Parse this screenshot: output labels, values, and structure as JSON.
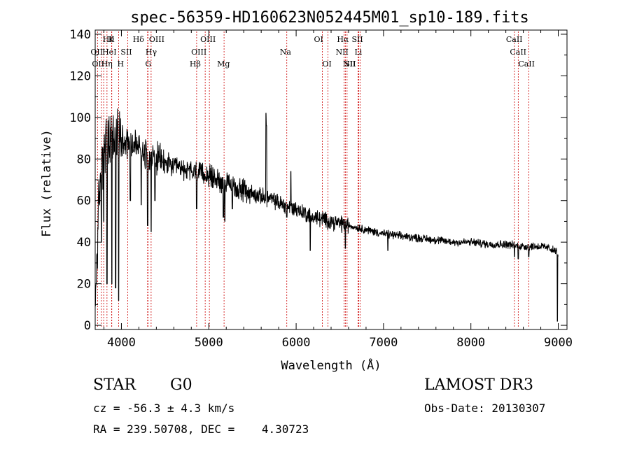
{
  "chart_data": {
    "type": "line",
    "title": "spec-56359-HD160623N052445M01_sp10-189.fits",
    "xlabel": "Wavelength (Å)",
    "ylabel": "Flux (relative)",
    "xlim": [
      3700,
      9100
    ],
    "ylim": [
      -2,
      142
    ],
    "xticks": [
      4000,
      5000,
      6000,
      7000,
      8000,
      9000
    ],
    "yticks": [
      0,
      20,
      40,
      60,
      80,
      100,
      120,
      140
    ],
    "grid": false,
    "line_color": "#000000",
    "marker_color": "#cc0000",
    "continuum_x": [
      3700,
      3720,
      3740,
      3760,
      3780,
      3800,
      3850,
      3900,
      3950,
      4000,
      4050,
      4100,
      4150,
      4200,
      4300,
      4400,
      4500,
      4600,
      4700,
      4800,
      4900,
      5000,
      5100,
      5200,
      5300,
      5400,
      5500,
      5600,
      5700,
      5800,
      5900,
      6000,
      6100,
      6200,
      6300,
      6400,
      6500,
      6600,
      6700,
      6800,
      6900,
      7000,
      7200,
      7400,
      7600,
      7800,
      8000,
      8200,
      8400,
      8600,
      8800,
      8900,
      9000
    ],
    "continuum_y": [
      5,
      35,
      55,
      70,
      80,
      85,
      88,
      90,
      90,
      90,
      89,
      88,
      87,
      86,
      82,
      80,
      78,
      76,
      75,
      74,
      73,
      72,
      70,
      68,
      66,
      65,
      63,
      62,
      61,
      59,
      57,
      56,
      54,
      52,
      51,
      50,
      49,
      48,
      47,
      46,
      45,
      44,
      43,
      42,
      41,
      40,
      40,
      39,
      39,
      38,
      38,
      37,
      35
    ],
    "features": [
      {
        "x": 3968,
        "y": 12
      },
      {
        "x": 3934,
        "y": 18
      },
      {
        "x": 3890,
        "y": 20
      },
      {
        "x": 3835,
        "y": 20
      },
      {
        "x": 3798,
        "y": 50
      },
      {
        "x": 3770,
        "y": 40
      },
      {
        "x": 4102,
        "y": 60
      },
      {
        "x": 4227,
        "y": 58
      },
      {
        "x": 4300,
        "y": 48
      },
      {
        "x": 4340,
        "y": 45
      },
      {
        "x": 4384,
        "y": 60
      },
      {
        "x": 4861,
        "y": 56
      },
      {
        "x": 5167,
        "y": 52
      },
      {
        "x": 5183,
        "y": 50
      },
      {
        "x": 5269,
        "y": 56
      },
      {
        "x": 5655,
        "y": 102
      },
      {
        "x": 5660,
        "y": 96
      },
      {
        "x": 5893,
        "y": 52
      },
      {
        "x": 5940,
        "y": 74
      },
      {
        "x": 6122,
        "y": 50
      },
      {
        "x": 6162,
        "y": 36
      },
      {
        "x": 6563,
        "y": 37
      },
      {
        "x": 7050,
        "y": 36
      },
      {
        "x": 8498,
        "y": 33
      },
      {
        "x": 8542,
        "y": 32
      },
      {
        "x": 8662,
        "y": 33
      },
      {
        "x": 8990,
        "y": 2
      }
    ],
    "line_markers": [
      {
        "x": 3770,
        "label": "Hθ",
        "row": 0,
        "offset": 2
      },
      {
        "x": 3835,
        "label": "K",
        "row": 0,
        "offset": 2
      },
      {
        "x": 3890,
        "label": "Hδ",
        "row": 0,
        "offset": 30
      },
      {
        "x": 4300,
        "label": "OIII",
        "row": 0,
        "offset": 2
      },
      {
        "x": 5007,
        "label": "OIII",
        "row": 0,
        "offset": -13
      },
      {
        "x": 6300,
        "label": "OI",
        "row": 0,
        "offset": -12
      },
      {
        "x": 6563,
        "label": "Hα",
        "row": 0,
        "offset": -12
      },
      {
        "x": 6716,
        "label": "SII",
        "row": 0,
        "offset": -10
      },
      {
        "x": 8498,
        "label": "CaII",
        "row": 0,
        "offset": -12
      },
      {
        "x": 3727,
        "label": "OII",
        "row": 1,
        "offset": -10
      },
      {
        "x": 3797,
        "label": "HeI",
        "row": 1,
        "offset": -2
      },
      {
        "x": 4072,
        "label": "SII",
        "row": 1,
        "offset": -10
      },
      {
        "x": 4340,
        "label": "Hγ",
        "row": 1,
        "offset": -8
      },
      {
        "x": 4959,
        "label": "OIII",
        "row": 1,
        "offset": -20
      },
      {
        "x": 5893,
        "label": "Na",
        "row": 1,
        "offset": -10
      },
      {
        "x": 6548,
        "label": "NII",
        "row": 1,
        "offset": -12
      },
      {
        "x": 6708,
        "label": "Li",
        "row": 1,
        "offset": -5
      },
      {
        "x": 8542,
        "label": "CaII",
        "row": 1,
        "offset": -12
      },
      {
        "x": 3727,
        "label": "OII",
        "row": 2,
        "offset": -8
      },
      {
        "x": 3889,
        "label": "Hη",
        "row": 2,
        "offset": -15
      },
      {
        "x": 3968,
        "label": "H",
        "row": 2,
        "offset": -2
      },
      {
        "x": 4304,
        "label": "G",
        "row": 2,
        "offset": -4
      },
      {
        "x": 4861,
        "label": "Hβ",
        "row": 2,
        "offset": -10
      },
      {
        "x": 5175,
        "label": "Mg",
        "row": 2,
        "offset": -10
      },
      {
        "x": 6363,
        "label": "OI",
        "row": 2,
        "offset": -8
      },
      {
        "x": 6583,
        "label": "NII",
        "row": 2,
        "offset": -6
      },
      {
        "x": 6731,
        "label": "SII",
        "row": 2,
        "offset": -22
      },
      {
        "x": 8662,
        "label": "CaII",
        "row": 2,
        "offset": -15
      }
    ]
  },
  "info": {
    "object_class": "STAR",
    "subclass": "G0",
    "survey": "LAMOST DR3",
    "cz": "cz = -56.3 ± 4.3 km/s",
    "obs_date": "Obs-Date: 20130307",
    "coords": "RA = 239.50708, DEC =    4.30723"
  }
}
